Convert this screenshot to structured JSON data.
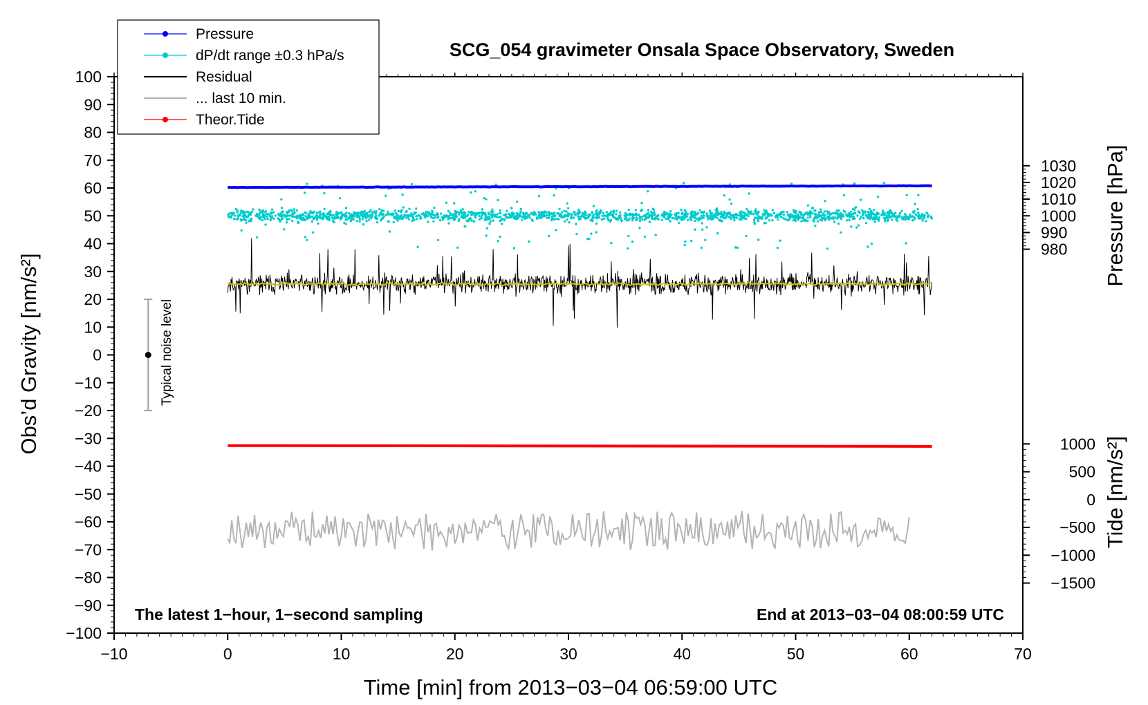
{
  "chart_data": {
    "type": "line",
    "title": "SCG_054 gravimeter Onsala Space Observatory, Sweden",
    "xlabel": "Time [min] from 2013−03−04 06:59:00 UTC",
    "ylabel_left": "Obs’d Gravity [nm/s²]",
    "ylabel_right_top": "Pressure [hPa]",
    "ylabel_right_bottom": "Tide [nm/s²]",
    "xlim": [
      -10,
      70
    ],
    "ylim": [
      -100,
      100
    ],
    "x_ticks": [
      {
        "v": -10,
        "label": "−10"
      },
      {
        "v": 0,
        "label": "0"
      },
      {
        "v": 10,
        "label": "10"
      },
      {
        "v": 20,
        "label": "20"
      },
      {
        "v": 30,
        "label": "30"
      },
      {
        "v": 40,
        "label": "40"
      },
      {
        "v": 50,
        "label": "50"
      },
      {
        "v": 60,
        "label": "60"
      },
      {
        "v": 70,
        "label": "70"
      }
    ],
    "y_ticks": [
      {
        "v": 100,
        "label": "100"
      },
      {
        "v": 90,
        "label": "90"
      },
      {
        "v": 80,
        "label": "80"
      },
      {
        "v": 70,
        "label": "70"
      },
      {
        "v": 60,
        "label": "60"
      },
      {
        "v": 50,
        "label": "50"
      },
      {
        "v": 40,
        "label": "40"
      },
      {
        "v": 30,
        "label": "30"
      },
      {
        "v": 20,
        "label": "20"
      },
      {
        "v": 10,
        "label": "10"
      },
      {
        "v": 0,
        "label": "0"
      },
      {
        "v": -10,
        "label": "−10"
      },
      {
        "v": -20,
        "label": "−20"
      },
      {
        "v": -30,
        "label": "−30"
      },
      {
        "v": -40,
        "label": "−40"
      },
      {
        "v": -50,
        "label": "−50"
      },
      {
        "v": -60,
        "label": "−60"
      },
      {
        "v": -70,
        "label": "−70"
      },
      {
        "v": -80,
        "label": "−80"
      },
      {
        "v": -90,
        "label": "−90"
      },
      {
        "v": -100,
        "label": "−100"
      }
    ],
    "pressure_axis": {
      "hpa_per_unit_left": 1.6667,
      "zero_at_left": 1000,
      "ticks": [
        {
          "v": 1030,
          "label": "1030"
        },
        {
          "v": 1020,
          "label": "1020"
        },
        {
          "v": 1010,
          "label": "1010"
        },
        {
          "v": 1000,
          "label": "1000"
        },
        {
          "v": 990,
          "label": "990"
        },
        {
          "v": 980,
          "label": "980"
        }
      ]
    },
    "tide_axis": {
      "nms2_per_unit_left": 50,
      "zero_at_left": -52,
      "ticks": [
        {
          "v": 1000,
          "label": "1000"
        },
        {
          "v": 500,
          "label": "500"
        },
        {
          "v": 0,
          "label": "0"
        },
        {
          "v": -500,
          "label": "−500"
        },
        {
          "v": -1000,
          "label": "−1000"
        },
        {
          "v": -1500,
          "label": "−1500"
        }
      ]
    },
    "series": [
      {
        "name": "Pressure",
        "color": "#0000ff",
        "style": "line-dots",
        "x_range": [
          0,
          62
        ],
        "level_hpa": 1017.0,
        "end_hpa": 1018.0,
        "noise": 0.2
      },
      {
        "name": "dP/dt range ±0.3 hPa/s",
        "color": "#00cccc",
        "style": "dots",
        "x_range": [
          0,
          62
        ],
        "center": 50,
        "spread": 2.5,
        "outlier_spread": 12
      },
      {
        "name": "Residual",
        "color": "#000000",
        "style": "line",
        "x_range": [
          0,
          62
        ],
        "center": 25.5,
        "spread": 5,
        "max_spike": 14
      },
      {
        "name": "Residual smoothed",
        "color": "#c8c800",
        "style": "line",
        "x_range": [
          0,
          62
        ],
        "center": 25.5,
        "spread": 0.8
      },
      {
        "name": "... last 10 min.",
        "color": "#b4b4b4",
        "style": "line",
        "x_range": [
          0,
          60
        ],
        "center": -63,
        "spread": 6
      },
      {
        "name": "Theor.Tide",
        "color": "#ff0000",
        "style": "line-dots",
        "x_range": [
          0,
          62
        ],
        "start": -32.6,
        "end": -32.9
      }
    ],
    "noise_bar": {
      "x": -7,
      "center": 0,
      "low": -20,
      "high": 20,
      "label": "Typical noise level"
    },
    "legend_position": "top-left",
    "legend": [
      {
        "label": "Pressure",
        "color": "#0000ff",
        "marker": true
      },
      {
        "label": "dP/dt range ±0.3 hPa/s",
        "color": "#00cccc",
        "marker": true
      },
      {
        "label": "Residual",
        "color": "#000000",
        "marker": false
      },
      {
        "label": "... last 10 min.",
        "color": "#b4b4b4",
        "marker": false
      },
      {
        "label": "Theor.Tide",
        "color": "#ff0000",
        "marker": true
      }
    ],
    "annotations": {
      "bottom_left": "The latest 1−hour, 1−second sampling",
      "bottom_right": "End at 2013−03−04 08:00:59 UTC"
    }
  }
}
